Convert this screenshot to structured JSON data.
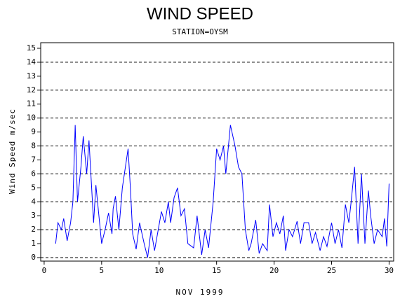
{
  "chart_data": {
    "type": "line",
    "title": "WIND SPEED",
    "subtitle": "STATION=OYSM",
    "x_label": "NOV 1999",
    "y_label": "Wind Speed m/sec",
    "xlim": [
      -0.3,
      30.4
    ],
    "xticks": [
      0,
      5,
      10,
      15,
      20,
      25,
      30
    ],
    "ylim": [
      -0.25,
      15.4
    ],
    "yticks": [
      0,
      1,
      2,
      3,
      4,
      5,
      6,
      7,
      8,
      9,
      10,
      11,
      12,
      13,
      14,
      15
    ],
    "grid_values": [
      0,
      2,
      4,
      6,
      8,
      10,
      12,
      14
    ],
    "series": [
      {
        "color": "#0000ff",
        "x": [
          1.0,
          1.2,
          1.5,
          1.7,
          2.0,
          2.3,
          2.5,
          2.7,
          2.9,
          3.2,
          3.4,
          3.7,
          3.9,
          4.3,
          4.5,
          5.0,
          5.3,
          5.6,
          5.9,
          6.0,
          6.2,
          6.5,
          6.8,
          7.3,
          7.5,
          7.7,
          8.0,
          8.3,
          8.7,
          9.0,
          9.3,
          9.6,
          10.2,
          10.5,
          10.8,
          11.0,
          11.3,
          11.6,
          11.9,
          12.2,
          12.5,
          13.0,
          13.3,
          13.7,
          14.0,
          14.3,
          14.7,
          15.0,
          15.3,
          15.6,
          15.8,
          16.2,
          16.6,
          16.9,
          17.2,
          17.5,
          17.8,
          18.0,
          18.4,
          18.7,
          19.0,
          19.4,
          19.6,
          19.9,
          20.2,
          20.5,
          20.8,
          21.0,
          21.3,
          21.6,
          22.0,
          22.3,
          22.6,
          23.0,
          23.3,
          23.6,
          24.0,
          24.3,
          24.6,
          25.0,
          25.3,
          25.6,
          25.9,
          26.2,
          26.5,
          26.7,
          27.0,
          27.3,
          27.6,
          27.9,
          28.2,
          28.4,
          28.7,
          29.0,
          29.4,
          29.6,
          29.8,
          30.0
        ],
        "values": [
          1.0,
          2.5,
          2.0,
          2.8,
          1.2,
          2.5,
          4.0,
          9.5,
          4.0,
          6.5,
          8.7,
          6.0,
          8.4,
          2.5,
          5.2,
          1.0,
          2.0,
          3.2,
          1.7,
          3.5,
          4.4,
          2.0,
          5.0,
          7.8,
          5.0,
          1.7,
          0.6,
          2.5,
          1.0,
          0.0,
          2.0,
          0.5,
          3.3,
          2.5,
          4.0,
          2.5,
          4.3,
          5.0,
          3.0,
          3.5,
          1.0,
          0.7,
          3.0,
          0.2,
          2.0,
          0.7,
          4.0,
          7.8,
          7.0,
          8.0,
          6.0,
          9.5,
          8.0,
          6.5,
          6.0,
          2.0,
          0.5,
          1.0,
          2.7,
          0.3,
          1.0,
          0.5,
          3.8,
          1.5,
          2.5,
          1.7,
          3.0,
          0.5,
          2.0,
          1.5,
          2.6,
          1.0,
          2.5,
          2.5,
          1.0,
          1.8,
          0.5,
          1.5,
          0.8,
          2.5,
          1.0,
          2.0,
          0.7,
          3.8,
          2.5,
          4.0,
          6.5,
          1.0,
          6.0,
          1.0,
          4.8,
          3.0,
          1.0,
          2.0,
          1.5,
          2.8,
          0.8,
          5.3
        ]
      }
    ]
  }
}
